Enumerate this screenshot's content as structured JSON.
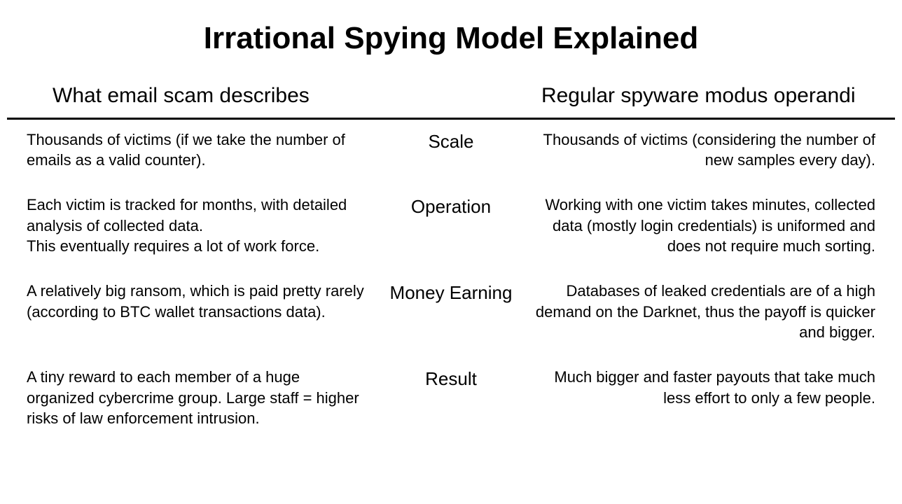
{
  "title": "Irrational Spying Model Explained",
  "columns": {
    "left_header": "What email scam describes",
    "right_header": "Regular spyware\nmodus operandi"
  },
  "table": {
    "type": "table",
    "background_color": "#ffffff",
    "text_color": "#000000",
    "divider_color": "#000000",
    "divider_width": 3,
    "title_fontsize": 44,
    "header_fontsize": 30,
    "category_fontsize": 26,
    "body_fontsize": 22,
    "font_family": "Segoe UI",
    "rows": [
      {
        "category": "Scale",
        "left": "Thousands of victims (if we take the number of emails as a valid counter).",
        "right": "Thousands of victims (considering the number of new samples every day)."
      },
      {
        "category": "Operation",
        "left": "Each victim is tracked for months, with detailed analysis of collected data.\nThis eventually requires a lot of work force.",
        "right": "Working with one victim takes minutes, collected data (mostly login credentials) is uniformed and does not require much sorting."
      },
      {
        "category": "Money Earning",
        "left": "A relatively big ransom, which is paid pretty rarely (according to BTC wallet transactions data).",
        "right": "Databases of leaked credentials are of a high demand on the Darknet, thus the payoff is quicker and bigger."
      },
      {
        "category": "Result",
        "left": "A tiny reward to each member of a huge organized cybercrime group. Large staff = higher risks of law enforcement intrusion.",
        "right": "Much bigger and faster payouts that take much less effort to only a few people."
      }
    ]
  }
}
